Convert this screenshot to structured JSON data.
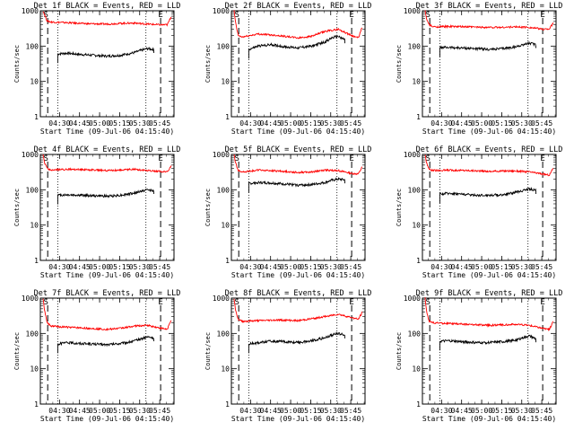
{
  "chart_data": [
    {
      "type": "line",
      "title": "Det 1f BLACK = Events, RED = LLD",
      "xlabel": "Start Time (09-Jul-06 04:15:40)",
      "ylabel": "Counts/sec",
      "x_ticks": [
        "04:30",
        "04:45",
        "05:00",
        "05:15",
        "05:30",
        "05:45"
      ],
      "y_ticks": [
        "1",
        "10",
        "100",
        "1000"
      ],
      "yscale": "log",
      "ylim": [
        1,
        1000
      ],
      "xlim_minutes_after_04_15_40": [
        0,
        100
      ],
      "markers": {
        "start_label": "S",
        "end_label": "E",
        "start_min": 5.5,
        "dotted1_min": 13,
        "dotted2_min": 79,
        "end_min": 90
      },
      "colors": {
        "events": "#000000",
        "lld": "#ff0000"
      },
      "series": [
        {
          "name": "Events",
          "color": "#000000",
          "x": [
            13,
            20,
            30,
            40,
            50,
            60,
            70,
            75,
            80,
            85
          ],
          "y": [
            60,
            63,
            58,
            55,
            52,
            55,
            65,
            75,
            85,
            80
          ]
        },
        {
          "name": "LLD",
          "color": "#ff0000",
          "x": [
            2,
            3,
            5,
            8,
            20,
            35,
            50,
            60,
            70,
            80,
            90,
            95,
            98
          ],
          "y": [
            1000,
            800,
            520,
            480,
            460,
            430,
            420,
            440,
            450,
            420,
            400,
            400,
            700
          ]
        }
      ]
    },
    {
      "type": "line",
      "title": "Det 2f BLACK = Events, RED = LLD",
      "xlabel": "Start Time (09-Jul-06 04:15:40)",
      "ylabel": "Counts/sec",
      "x_ticks": [
        "04:30",
        "04:45",
        "05:00",
        "05:15",
        "05:30",
        "05:45"
      ],
      "y_ticks": [
        "1",
        "10",
        "100",
        "1000"
      ],
      "yscale": "log",
      "ylim": [
        1,
        1000
      ],
      "markers": {
        "start_label": "S",
        "end_label": "E",
        "start_min": 5.5,
        "dotted1_min": 13,
        "dotted2_min": 79,
        "end_min": 90
      },
      "series": [
        {
          "name": "Events",
          "color": "#000000",
          "x": [
            13,
            20,
            30,
            40,
            50,
            60,
            70,
            75,
            80,
            85
          ],
          "y": [
            80,
            100,
            110,
            95,
            90,
            100,
            130,
            170,
            190,
            150
          ]
        },
        {
          "name": "LLD",
          "color": "#ff0000",
          "x": [
            2,
            3,
            5,
            8,
            20,
            35,
            50,
            60,
            70,
            80,
            90,
            95,
            98
          ],
          "y": [
            1000,
            500,
            200,
            180,
            220,
            200,
            170,
            190,
            260,
            300,
            200,
            170,
            350
          ]
        }
      ]
    },
    {
      "type": "line",
      "title": "Det 3f BLACK = Events, RED = LLD",
      "xlabel": "Start Time (09-Jul-06 04:15:40)",
      "ylabel": "Counts/sec",
      "x_ticks": [
        "04:30",
        "04:45",
        "05:00",
        "05:15",
        "05:30",
        "05:45"
      ],
      "y_ticks": [
        "1",
        "10",
        "100",
        "1000"
      ],
      "yscale": "log",
      "ylim": [
        1,
        1000
      ],
      "markers": {
        "start_label": "S",
        "end_label": "E",
        "start_min": 5.5,
        "dotted1_min": 13,
        "dotted2_min": 79,
        "end_min": 90
      },
      "series": [
        {
          "name": "Events",
          "color": "#000000",
          "x": [
            13,
            20,
            30,
            40,
            50,
            60,
            70,
            75,
            80,
            85
          ],
          "y": [
            90,
            92,
            88,
            85,
            80,
            85,
            95,
            110,
            120,
            110
          ]
        },
        {
          "name": "LLD",
          "color": "#ff0000",
          "x": [
            2,
            3,
            5,
            8,
            20,
            35,
            50,
            60,
            70,
            80,
            90,
            95,
            98
          ],
          "y": [
            1000,
            600,
            400,
            350,
            360,
            350,
            340,
            340,
            350,
            340,
            300,
            310,
            450
          ]
        }
      ]
    },
    {
      "type": "line",
      "title": "Det 4f BLACK = Events, RED = LLD",
      "xlabel": "Start Time (09-Jul-06 04:15:40)",
      "ylabel": "Counts/sec",
      "x_ticks": [
        "04:30",
        "04:45",
        "05:00",
        "05:15",
        "05:30",
        "05:45"
      ],
      "y_ticks": [
        "1",
        "10",
        "100",
        "1000"
      ],
      "yscale": "log",
      "ylim": [
        1,
        1000
      ],
      "markers": {
        "start_label": "S",
        "end_label": "E",
        "start_min": 5.5,
        "dotted1_min": 13,
        "dotted2_min": 79,
        "end_min": 90
      },
      "series": [
        {
          "name": "Events",
          "color": "#000000",
          "x": [
            13,
            20,
            30,
            40,
            50,
            60,
            70,
            75,
            80,
            85
          ],
          "y": [
            70,
            72,
            70,
            68,
            66,
            70,
            80,
            90,
            100,
            95
          ]
        },
        {
          "name": "LLD",
          "color": "#ff0000",
          "x": [
            2,
            3,
            5,
            8,
            20,
            35,
            50,
            60,
            70,
            80,
            90,
            95,
            98
          ],
          "y": [
            1000,
            600,
            400,
            360,
            380,
            370,
            350,
            360,
            380,
            350,
            330,
            320,
            480
          ]
        }
      ]
    },
    {
      "type": "line",
      "title": "Det 5f BLACK = Events, RED = LLD",
      "xlabel": "Start Time (09-Jul-06 04:15:40)",
      "ylabel": "Counts/sec",
      "x_ticks": [
        "04:30",
        "04:45",
        "05:00",
        "05:15",
        "05:30",
        "05:45"
      ],
      "y_ticks": [
        "1",
        "10",
        "100",
        "1000"
      ],
      "yscale": "log",
      "ylim": [
        1,
        1000
      ],
      "markers": {
        "start_label": "S",
        "end_label": "E",
        "start_min": 5.5,
        "dotted1_min": 13,
        "dotted2_min": 79,
        "end_min": 90
      },
      "series": [
        {
          "name": "Events",
          "color": "#000000",
          "x": [
            13,
            20,
            30,
            40,
            50,
            60,
            70,
            75,
            80,
            85
          ],
          "y": [
            150,
            160,
            155,
            145,
            135,
            140,
            160,
            185,
            200,
            190
          ]
        },
        {
          "name": "LLD",
          "color": "#ff0000",
          "x": [
            2,
            3,
            5,
            8,
            20,
            35,
            50,
            60,
            70,
            80,
            90,
            95,
            98
          ],
          "y": [
            1000,
            600,
            350,
            320,
            360,
            340,
            310,
            320,
            360,
            350,
            290,
            280,
            450
          ]
        }
      ]
    },
    {
      "type": "line",
      "title": "Det 6f BLACK = Events, RED = LLD",
      "xlabel": "Start Time (09-Jul-06 04:15:40)",
      "ylabel": "Counts/sec",
      "x_ticks": [
        "04:30",
        "04:45",
        "05:00",
        "05:15",
        "05:30",
        "05:45"
      ],
      "y_ticks": [
        "1",
        "10",
        "100",
        "1000"
      ],
      "yscale": "log",
      "ylim": [
        1,
        1000
      ],
      "markers": {
        "start_label": "S",
        "end_label": "E",
        "start_min": 5.5,
        "dotted1_min": 13,
        "dotted2_min": 79,
        "end_min": 90
      },
      "series": [
        {
          "name": "Events",
          "color": "#000000",
          "x": [
            13,
            20,
            30,
            40,
            50,
            60,
            70,
            75,
            80,
            85
          ],
          "y": [
            75,
            80,
            75,
            70,
            70,
            72,
            85,
            95,
            105,
            95
          ]
        },
        {
          "name": "LLD",
          "color": "#ff0000",
          "x": [
            2,
            3,
            5,
            8,
            20,
            35,
            50,
            60,
            70,
            80,
            90,
            95,
            98
          ],
          "y": [
            1000,
            600,
            380,
            350,
            360,
            350,
            330,
            340,
            340,
            320,
            280,
            260,
            420
          ]
        }
      ]
    },
    {
      "type": "line",
      "title": "Det 7f BLACK = Events, RED = LLD",
      "xlabel": "Start Time (09-Jul-06 04:15:40)",
      "ylabel": "Counts/sec",
      "x_ticks": [
        "04:30",
        "04:45",
        "05:00",
        "05:15",
        "05:30",
        "05:45"
      ],
      "y_ticks": [
        "1",
        "10",
        "100",
        "1000"
      ],
      "yscale": "log",
      "ylim": [
        1,
        1000
      ],
      "markers": {
        "start_label": "S",
        "end_label": "E",
        "start_min": 5.5,
        "dotted1_min": 13,
        "dotted2_min": 79,
        "end_min": 90
      },
      "series": [
        {
          "name": "Events",
          "color": "#000000",
          "x": [
            13,
            20,
            30,
            40,
            50,
            60,
            70,
            75,
            80,
            85
          ],
          "y": [
            50,
            55,
            52,
            50,
            48,
            52,
            60,
            70,
            80,
            75
          ]
        },
        {
          "name": "LLD",
          "color": "#ff0000",
          "x": [
            2,
            3,
            5,
            8,
            20,
            35,
            50,
            60,
            70,
            80,
            90,
            95,
            98
          ],
          "y": [
            1000,
            500,
            200,
            160,
            150,
            140,
            130,
            140,
            160,
            170,
            140,
            130,
            250
          ]
        }
      ]
    },
    {
      "type": "line",
      "title": "Det 8f BLACK = Events, RED = LLD",
      "xlabel": "Start Time (09-Jul-06 04:15:40)",
      "ylabel": "Counts/sec",
      "x_ticks": [
        "04:30",
        "04:45",
        "05:00",
        "05:15",
        "05:30",
        "05:45"
      ],
      "y_ticks": [
        "1",
        "10",
        "100",
        "1000"
      ],
      "yscale": "log",
      "ylim": [
        1,
        1000
      ],
      "markers": {
        "start_label": "S",
        "end_label": "E",
        "start_min": 5.5,
        "dotted1_min": 13,
        "dotted2_min": 79,
        "end_min": 90
      },
      "series": [
        {
          "name": "Events",
          "color": "#000000",
          "x": [
            13,
            20,
            30,
            40,
            50,
            60,
            70,
            75,
            80,
            85
          ],
          "y": [
            50,
            55,
            60,
            58,
            55,
            62,
            75,
            90,
            100,
            90
          ]
        },
        {
          "name": "LLD",
          "color": "#ff0000",
          "x": [
            2,
            3,
            5,
            8,
            20,
            35,
            50,
            60,
            70,
            80,
            90,
            95,
            98
          ],
          "y": [
            1000,
            500,
            250,
            220,
            230,
            240,
            230,
            260,
            300,
            350,
            280,
            250,
            400
          ]
        }
      ]
    },
    {
      "type": "line",
      "title": "Det 9f BLACK = Events, RED = LLD",
      "xlabel": "Start Time (09-Jul-06 04:15:40)",
      "ylabel": "Counts/sec",
      "x_ticks": [
        "04:30",
        "04:45",
        "05:00",
        "05:15",
        "05:30",
        "05:45"
      ],
      "y_ticks": [
        "1",
        "10",
        "100",
        "1000"
      ],
      "yscale": "log",
      "ylim": [
        1,
        1000
      ],
      "markers": {
        "start_label": "S",
        "end_label": "E",
        "start_min": 5.5,
        "dotted1_min": 13,
        "dotted2_min": 79,
        "end_min": 90
      },
      "series": [
        {
          "name": "Events",
          "color": "#000000",
          "x": [
            13,
            20,
            30,
            40,
            50,
            60,
            70,
            75,
            80,
            85
          ],
          "y": [
            60,
            62,
            58,
            55,
            55,
            58,
            65,
            75,
            85,
            70
          ]
        },
        {
          "name": "LLD",
          "color": "#ff0000",
          "x": [
            2,
            3,
            5,
            8,
            20,
            35,
            50,
            60,
            70,
            80,
            90,
            95,
            98
          ],
          "y": [
            1000,
            450,
            220,
            200,
            190,
            180,
            170,
            175,
            180,
            170,
            140,
            130,
            220
          ]
        }
      ]
    }
  ]
}
